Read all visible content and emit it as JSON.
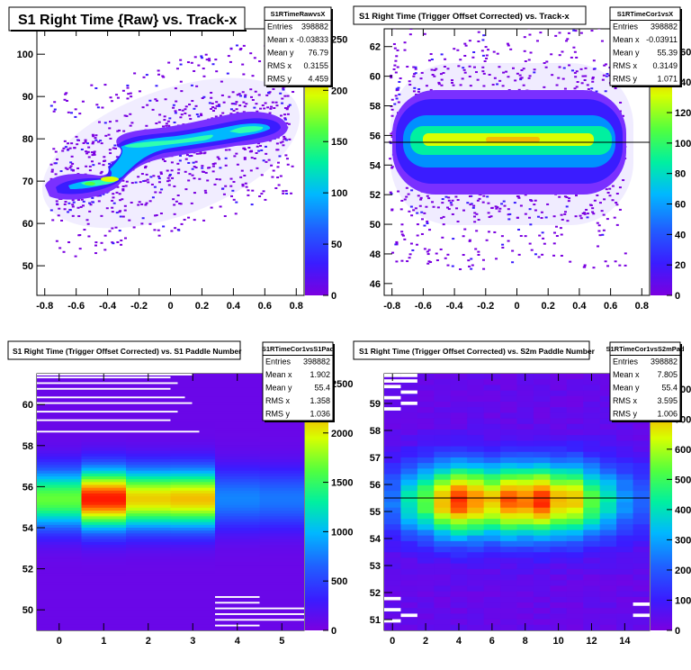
{
  "panels": [
    {
      "title": "S1 Right Time {Raw} vs. Track-x",
      "stats": {
        "name": "S1RTimeRawvsX",
        "rows": [
          [
            "Entries",
            "398882"
          ],
          [
            "Mean x",
            "-0.03833"
          ],
          [
            "Mean y",
            "76.79"
          ],
          [
            "RMS x",
            "0.3155"
          ],
          [
            "RMS y",
            "4.459"
          ]
        ]
      },
      "xticks": [
        "-0.8",
        "-0.6",
        "-0.4",
        "-0.2",
        "0",
        "0.2",
        "0.4",
        "0.6",
        "0.8"
      ],
      "yticks": [
        "50",
        "60",
        "70",
        "80",
        "90",
        "100"
      ],
      "zticks": [
        "0",
        "50",
        "100",
        "150",
        "200",
        "250"
      ]
    },
    {
      "title": "S1 Right Time (Trigger Offset Corrected) vs. Track-x",
      "stats": {
        "name": "S1RTimeCor1vsX",
        "rows": [
          [
            "Entries",
            "398882"
          ],
          [
            "Mean x",
            "-0.03911"
          ],
          [
            "Mean y",
            "55.39"
          ],
          [
            "RMS x",
            "0.3149"
          ],
          [
            "RMS y",
            "1.071"
          ]
        ]
      },
      "xticks": [
        "-0.8",
        "-0.6",
        "-0.4",
        "-0.2",
        "0",
        "0.2",
        "0.4",
        "0.6",
        "0.8"
      ],
      "yticks": [
        "46",
        "48",
        "50",
        "52",
        "54",
        "56",
        "58",
        "60",
        "62"
      ],
      "zticks": [
        "0",
        "20",
        "40",
        "60",
        "80",
        "100",
        "120",
        "140",
        "160"
      ]
    },
    {
      "title": "S1 Right Time (Trigger Offset Corrected) vs. S1 Paddle Number",
      "stats": {
        "name": "S1RTimeCor1vsS1Pad",
        "rows": [
          [
            "Entries",
            "398882"
          ],
          [
            "Mean x",
            "1.902"
          ],
          [
            "Mean y",
            "55.4"
          ],
          [
            "RMS x",
            "1.358"
          ],
          [
            "RMS y",
            "1.036"
          ]
        ]
      },
      "xticks": [
        "0",
        "1",
        "2",
        "3",
        "4",
        "5"
      ],
      "yticks": [
        "50",
        "52",
        "54",
        "56",
        "58",
        "60"
      ],
      "zticks": [
        "0",
        "500",
        "1000",
        "1500",
        "2000",
        "2500"
      ]
    },
    {
      "title": "S1 Right Time (Trigger Offset Corrected) vs. S2m Paddle Number",
      "stats": {
        "name": "S1RTimeCor1vsS2mPad",
        "rows": [
          [
            "Entries",
            "398882"
          ],
          [
            "Mean x",
            "7.805"
          ],
          [
            "Mean y",
            "55.4"
          ],
          [
            "RMS x",
            "3.595"
          ],
          [
            "RMS y",
            "1.006"
          ]
        ]
      },
      "xticks": [
        "0",
        "2",
        "4",
        "6",
        "8",
        "10",
        "12",
        "14"
      ],
      "yticks": [
        "51",
        "52",
        "53",
        "54",
        "55",
        "56",
        "57",
        "58",
        "59"
      ],
      "zticks": [
        "0",
        "100",
        "200",
        "300",
        "400",
        "500",
        "600",
        "700",
        "800"
      ]
    }
  ],
  "chart_data": [
    {
      "type": "heatmap",
      "title": "S1 Right Time {Raw} vs. Track-x",
      "xlim": [
        -0.85,
        0.85
      ],
      "ylim": [
        43,
        106
      ],
      "zlim": [
        0,
        260
      ],
      "x_ticks": [
        -0.8,
        -0.6,
        -0.4,
        -0.2,
        0,
        0.2,
        0.4,
        0.6,
        0.8
      ],
      "y_ticks": [
        50,
        60,
        70,
        80,
        90,
        100
      ],
      "z_ticks": [
        0,
        50,
        100,
        150,
        200,
        250
      ],
      "description_points": [
        {
          "x": -0.4,
          "y": 70,
          "z": 240
        },
        {
          "x": -0.1,
          "y": 78,
          "z": 210
        },
        {
          "x": 0.4,
          "y": 82,
          "z": 190
        }
      ]
    },
    {
      "type": "heatmap",
      "title": "S1 Right Time (Trigger Offset Corrected) vs. Track-x",
      "xlim": [
        -0.85,
        0.85
      ],
      "ylim": [
        45.2,
        63.2
      ],
      "zlim": [
        0,
        175
      ],
      "x_ticks": [
        -0.8,
        -0.6,
        -0.4,
        -0.2,
        0,
        0.2,
        0.4,
        0.6,
        0.8
      ],
      "y_ticks": [
        46,
        48,
        50,
        52,
        54,
        56,
        58,
        60,
        62
      ],
      "z_ticks": [
        0,
        20,
        40,
        60,
        80,
        100,
        120,
        140,
        160
      ],
      "profile_y": 55.39
    },
    {
      "type": "heatmap",
      "title": "S1 Right Time (Trigger Offset Corrected) vs. S1 Paddle Number",
      "xlim": [
        -0.5,
        5.5
      ],
      "ylim": [
        49,
        61.5
      ],
      "zlim": [
        0,
        2600
      ],
      "x_ticks": [
        0,
        1,
        2,
        3,
        4,
        5
      ],
      "y_ticks": [
        50,
        52,
        54,
        56,
        58,
        60
      ],
      "z_ticks": [
        0,
        500,
        1000,
        1500,
        2000,
        2500
      ],
      "peak_y": 55.4
    },
    {
      "type": "heatmap",
      "title": "S1 Right Time (Trigger Offset Corrected) vs. S2m Paddle Number",
      "xlim": [
        -0.5,
        15.5
      ],
      "ylim": [
        50.6,
        60.1
      ],
      "zlim": [
        0,
        850
      ],
      "x_ticks": [
        0,
        2,
        4,
        6,
        8,
        10,
        12,
        14
      ],
      "y_ticks": [
        51,
        52,
        53,
        54,
        55,
        56,
        57,
        58,
        59
      ],
      "z_ticks": [
        0,
        100,
        200,
        300,
        400,
        500,
        600,
        700,
        800
      ],
      "profile_y": 55.4
    }
  ]
}
